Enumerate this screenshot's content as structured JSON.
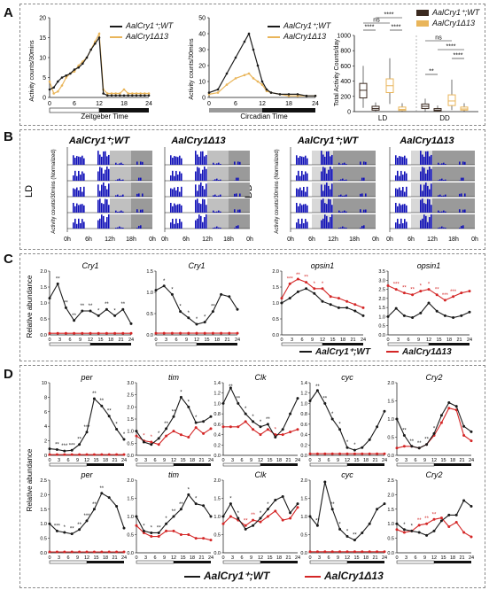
{
  "labels": {
    "A": "A",
    "B": "B",
    "C": "C",
    "D": "D"
  },
  "colors": {
    "wt": "#1a1a1a",
    "mut_A": "#e9b55a",
    "mut_CD": "#d42626",
    "actogram": "#1010b8",
    "dark": "#9a9a9a"
  },
  "panelA": {
    "plot1": {
      "ylabel": "Activity counts/30mins",
      "xlabel": "Zeitgeber Time",
      "xticks": [
        "0",
        "6",
        "12",
        "18",
        "24"
      ],
      "yticks": [
        "0",
        "5",
        "10",
        "15",
        "20"
      ],
      "legend": [
        "AalCry1⁺;WT",
        "AalCry1Δ13"
      ]
    },
    "plot2": {
      "ylabel": "Activity counts/30mins",
      "xlabel": "Circadian Time",
      "xticks": [
        "0",
        "6",
        "12",
        "18",
        "24"
      ],
      "yticks": [
        "0",
        "10",
        "20",
        "30",
        "40",
        "50"
      ],
      "legend": [
        "AalCry1⁺;WT",
        "AalCry1Δ13"
      ]
    },
    "plot3": {
      "ylabel": "Total Activity Counts/day",
      "groups": [
        "LD",
        "DD"
      ],
      "yticks": [
        "0",
        "200",
        "400",
        "600",
        "800",
        "1000"
      ],
      "legend": [
        "AalCry1⁺;WT",
        "AalCry1Δ13"
      ],
      "sig": [
        "****",
        "****",
        "ns",
        "****",
        "**",
        "****",
        "ns",
        "****"
      ]
    }
  },
  "panelB": {
    "titles": [
      "AalCry1⁺;WT",
      "AalCry1Δ13",
      "AalCry1⁺;WT",
      "AalCry1Δ13"
    ],
    "ld": "LD",
    "dd": "DD",
    "ylabel": "Activity counts/30mins (Normalized)",
    "xticks": [
      "0h",
      "6h",
      "12h",
      "18h",
      "0h"
    ]
  },
  "panelC": {
    "ylabel": "Relative abundance",
    "plots": [
      {
        "title": "Cry1",
        "yticks": [
          "0.0",
          "0.5",
          "1.0",
          "1.5",
          "2.0"
        ],
        "ymax": 2.0,
        "wt": [
          1.15,
          1.6,
          0.85,
          0.45,
          0.75,
          0.75,
          0.6,
          0.8,
          0.6,
          0.8,
          0.35
        ],
        "mut": [
          0.05,
          0.05,
          0.05,
          0.05,
          0.05,
          0.05,
          0.05,
          0.05,
          0.05,
          0.05,
          0.05
        ],
        "stars": [
          "**",
          "**",
          "**",
          "**",
          "**",
          "*",
          "**",
          "*",
          "**"
        ]
      },
      {
        "title": "Cry1",
        "yticks": [
          "0.0",
          "0.5",
          "1.0",
          "1.5"
        ],
        "ymax": 1.5,
        "wt": [
          1.05,
          1.15,
          0.95,
          0.55,
          0.4,
          0.25,
          0.3,
          0.55,
          0.95,
          0.9,
          0.6
        ],
        "mut": [
          0.04,
          0.04,
          0.04,
          0.04,
          0.04,
          0.04,
          0.04,
          0.04,
          0.04,
          0.04,
          0.04
        ],
        "stars": [
          "*",
          "*",
          "*",
          "*",
          "*",
          "*",
          "**"
        ]
      },
      {
        "title": "opsin1",
        "yticks": [
          "0.0",
          "0.5",
          "1.0",
          "1.5",
          "2.0"
        ],
        "ymax": 2.0,
        "wt": [
          1.0,
          1.15,
          1.35,
          1.45,
          1.3,
          1.05,
          0.95,
          0.85,
          0.85,
          0.75,
          0.6
        ],
        "mut": [
          1.15,
          1.6,
          1.75,
          1.65,
          1.45,
          1.45,
          1.2,
          1.15,
          1.05,
          0.95,
          0.85
        ],
        "stars": [
          "***",
          "**",
          "**",
          "*",
          "*"
        ]
      },
      {
        "title": "opsin1",
        "yticks": [
          "0.0",
          "0.5",
          "1.0",
          "1.5",
          "2.0",
          "2.5",
          "3.0",
          "3.5"
        ],
        "ymax": 3.5,
        "wt": [
          1.0,
          1.45,
          1.05,
          0.95,
          1.2,
          1.75,
          1.3,
          1.05,
          0.95,
          1.05,
          1.25
        ],
        "mut": [
          2.7,
          2.5,
          2.3,
          2.2,
          2.4,
          2.5,
          2.2,
          1.9,
          2.1,
          2.3,
          2.4
        ],
        "stars": [
          "***",
          "**",
          "**",
          "*",
          "*",
          "**",
          "***",
          "***"
        ]
      }
    ],
    "xticks": [
      "0",
      "3",
      "6",
      "9",
      "12",
      "15",
      "18",
      "21",
      "24"
    ],
    "legend": [
      "AalCry1⁺;WT",
      "AalCry1Δ13"
    ]
  },
  "panelD": {
    "ylabel": "Relative abundance",
    "xticks": [
      "0",
      "3",
      "6",
      "9",
      "12",
      "15",
      "18",
      "21",
      "24"
    ],
    "legend": [
      "AalCry1⁺;WT",
      "AalCry1Δ13"
    ],
    "row1": [
      {
        "title": "per",
        "yticks": [
          "0",
          "2",
          "4",
          "6",
          "8",
          "10"
        ],
        "ymax": 10,
        "wt": [
          0.9,
          0.8,
          0.6,
          0.7,
          1.5,
          3.2,
          7.8,
          6.8,
          5.4,
          3.6,
          2.2
        ],
        "mut": [
          0.1,
          0.1,
          0.1,
          0.1,
          0.1,
          0.1,
          0.1,
          0.1,
          0.1,
          0.1,
          0.1
        ],
        "stars": [
          "**",
          "***",
          "***",
          "**",
          "***",
          "**",
          "**",
          "**",
          "*",
          "*"
        ]
      },
      {
        "title": "tim",
        "yticks": [
          "0.0",
          "0.5",
          "1.0",
          "1.5",
          "2.0",
          "2.5",
          "3.0"
        ],
        "ymax": 3.0,
        "wt": [
          1.0,
          0.55,
          0.45,
          0.7,
          1.1,
          1.6,
          2.4,
          2.0,
          1.35,
          1.4,
          1.6
        ],
        "mut": [
          0.8,
          0.6,
          0.55,
          0.45,
          0.8,
          1.0,
          0.85,
          0.75,
          1.15,
          0.9,
          1.1
        ],
        "stars": [
          "*",
          "*",
          "*",
          "**",
          "**",
          "*",
          "*",
          "*"
        ]
      },
      {
        "title": "Clk",
        "yticks": [
          "0.0",
          "0.2",
          "0.4",
          "0.6",
          "0.8",
          "1.0",
          "1.2",
          "1.4"
        ],
        "ymax": 1.4,
        "wt": [
          1.0,
          1.3,
          1.0,
          0.8,
          0.65,
          0.55,
          0.6,
          0.35,
          0.5,
          0.8,
          1.1
        ],
        "mut": [
          0.55,
          0.55,
          0.55,
          0.65,
          0.5,
          0.4,
          0.5,
          0.4,
          0.4,
          0.45,
          0.5
        ],
        "stars": [
          "**",
          "**",
          "*",
          "*",
          "*",
          "**",
          "*"
        ]
      },
      {
        "title": "cyc",
        "yticks": [
          "0.0",
          "0.2",
          "0.4",
          "0.6",
          "0.8",
          "1.0",
          "1.2",
          "1.4"
        ],
        "ymax": 1.4,
        "wt": [
          1.05,
          1.25,
          1.0,
          0.7,
          0.5,
          0.15,
          0.1,
          0.15,
          0.3,
          0.55,
          0.85
        ],
        "mut": [
          0.03,
          0.03,
          0.03,
          0.03,
          0.03,
          0.03,
          0.03,
          0.03,
          0.03,
          0.03,
          0.03
        ],
        "stars": [
          "**",
          "**",
          "*",
          "*",
          "*",
          "*"
        ]
      },
      {
        "title": "Cry2",
        "yticks": [
          "0.0",
          "0.5",
          "1.0",
          "1.5",
          "2.0"
        ],
        "ymax": 2.0,
        "wt": [
          1.0,
          0.55,
          0.25,
          0.2,
          0.3,
          0.6,
          1.1,
          1.45,
          1.35,
          0.8,
          0.65
        ],
        "mut": [
          0.2,
          0.25,
          0.25,
          0.2,
          0.3,
          0.55,
          0.9,
          1.3,
          1.25,
          0.55,
          0.4
        ],
        "stars": [
          "**",
          "**",
          "**",
          "**",
          "*"
        ]
      }
    ],
    "row2": [
      {
        "title": "per",
        "yticks": [
          "0.0",
          "0.5",
          "1.0",
          "1.5",
          "2.0",
          "2.5"
        ],
        "ymax": 2.5,
        "wt": [
          1.0,
          0.75,
          0.7,
          0.65,
          0.8,
          1.1,
          1.5,
          2.05,
          1.9,
          1.6,
          0.85
        ],
        "mut": [
          0.03,
          0.03,
          0.03,
          0.03,
          0.03,
          0.03,
          0.03,
          0.03,
          0.03,
          0.03,
          0.03
        ],
        "stars": [
          "***",
          "*",
          "**",
          "**",
          "***",
          "**",
          "**"
        ]
      },
      {
        "title": "tim",
        "yticks": [
          "0.0",
          "0.5",
          "1.0",
          "1.5",
          "2.0"
        ],
        "ymax": 2.0,
        "wt": [
          1.0,
          0.6,
          0.55,
          0.55,
          0.8,
          1.0,
          1.2,
          1.6,
          1.35,
          1.3,
          1.0
        ],
        "mut": [
          0.75,
          0.55,
          0.45,
          0.45,
          0.6,
          0.6,
          0.5,
          0.5,
          0.4,
          0.4,
          0.35
        ],
        "stars": [
          "*",
          "*",
          "**",
          "*",
          "**",
          "**",
          "*",
          "*"
        ]
      },
      {
        "title": "Clk",
        "yticks": [
          "0.0",
          "0.5",
          "1.0",
          "1.5",
          "2.0"
        ],
        "ymax": 2.0,
        "wt": [
          1.0,
          1.35,
          0.95,
          0.65,
          0.75,
          0.95,
          1.2,
          1.45,
          1.55,
          1.1,
          1.35
        ],
        "mut": [
          0.8,
          1.0,
          0.9,
          0.75,
          0.9,
          0.85,
          1.0,
          1.15,
          0.9,
          0.95,
          1.25
        ],
        "stars": [
          "*",
          "*",
          "**",
          "**",
          "*",
          "*"
        ]
      },
      {
        "title": "cyc",
        "yticks": [
          "0.0",
          "0.5",
          "1.0",
          "1.5",
          "2.0"
        ],
        "ymax": 2.0,
        "wt": [
          1.0,
          0.75,
          1.95,
          1.2,
          0.65,
          0.45,
          0.35,
          0.55,
          0.8,
          1.2,
          1.35
        ],
        "mut": [
          0.03,
          0.03,
          0.03,
          0.03,
          0.03,
          0.03,
          0.03,
          0.03,
          0.03,
          0.03,
          0.03
        ],
        "stars": [
          "**",
          "*",
          "**",
          "*",
          "*",
          "**"
        ]
      },
      {
        "title": "Cry2",
        "yticks": [
          "0.0",
          "0.5",
          "1.0",
          "1.5",
          "2.0",
          "2.5"
        ],
        "ymax": 2.5,
        "wt": [
          1.0,
          0.8,
          0.75,
          0.7,
          0.6,
          0.75,
          1.1,
          1.3,
          1.3,
          1.8,
          1.6
        ],
        "mut": [
          0.8,
          0.7,
          0.75,
          0.95,
          1.0,
          1.15,
          1.2,
          0.9,
          1.05,
          0.7,
          0.55
        ],
        "stars": [
          "*",
          "*",
          "**",
          "**",
          "**"
        ]
      }
    ]
  },
  "chart_data": [
    {
      "type": "line",
      "panel": "A1",
      "xlabel": "Zeitgeber Time",
      "ylabel": "Activity counts/30mins",
      "xlim": [
        0,
        24
      ],
      "ylim": [
        0,
        20
      ],
      "series": [
        {
          "name": "AalCry1⁺;WT",
          "x": [
            0,
            1,
            2,
            3,
            4,
            5,
            6,
            7,
            8,
            9,
            10,
            11,
            12,
            13,
            14,
            15,
            16,
            17,
            18,
            19,
            20,
            21,
            22,
            23,
            24
          ],
          "values": [
            4,
            1,
            1.5,
            3,
            5,
            6,
            6.5,
            8,
            9,
            10,
            12,
            14,
            16,
            2,
            1,
            1,
            1,
            1,
            2,
            1,
            1,
            1,
            1,
            1,
            1
          ]
        },
        {
          "name": "AalCry1Δ13",
          "x": [
            0,
            1,
            2,
            3,
            4,
            5,
            6,
            7,
            8,
            9,
            10,
            11,
            12,
            13,
            14,
            15,
            16,
            17,
            18,
            19,
            20,
            21,
            22,
            23,
            24
          ],
          "values": [
            2,
            2.5,
            4,
            5,
            5.5,
            6,
            7,
            7.5,
            8.5,
            10,
            12,
            13.5,
            15,
            1,
            0.5,
            0.5,
            0.5,
            0.5,
            0.5,
            0.5,
            0.5,
            0.5,
            0.5,
            0.5,
            0.5
          ]
        }
      ]
    },
    {
      "type": "line",
      "panel": "A2",
      "xlabel": "Circadian Time",
      "ylabel": "Activity counts/30mins",
      "xlim": [
        0,
        24
      ],
      "ylim": [
        0,
        50
      ],
      "series": [
        {
          "name": "AalCry1⁺;WT",
          "x": [
            0,
            2,
            4,
            6,
            8,
            9,
            10,
            11,
            12,
            13,
            14,
            16,
            18,
            20,
            22,
            24
          ],
          "values": [
            2,
            3,
            8,
            12,
            14,
            15,
            12,
            10,
            8,
            4,
            3,
            2,
            1,
            1,
            1,
            1
          ]
        },
        {
          "name": "AalCry1Δ13",
          "x": [
            0,
            2,
            4,
            6,
            8,
            9,
            10,
            11,
            12,
            13,
            14,
            16,
            18,
            20,
            22,
            24
          ],
          "values": [
            3,
            5,
            15,
            25,
            35,
            40,
            30,
            20,
            10,
            5,
            3,
            2,
            2,
            2,
            1,
            1
          ]
        }
      ]
    },
    {
      "type": "bar",
      "panel": "A3",
      "ylabel": "Total Activity Counts/day",
      "categories": [
        "LD",
        "DD"
      ],
      "ylim": [
        0,
        1000
      ],
      "series": [
        {
          "name": "AalCry1⁺;WT",
          "values": [
            300,
            70
          ]
        },
        {
          "name": "AalCry1Δ13",
          "values": [
            350,
            150
          ]
        }
      ]
    }
  ]
}
